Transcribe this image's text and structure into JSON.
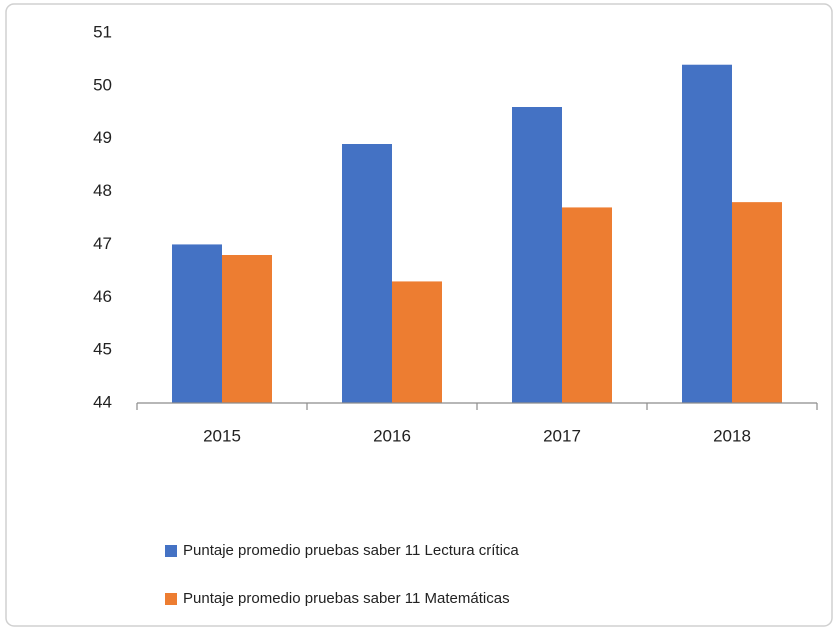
{
  "chart_data": {
    "type": "bar",
    "categories": [
      "2015",
      "2016",
      "2017",
      "2018"
    ],
    "series": [
      {
        "name": "Puntaje promedio pruebas saber 11 Lectura crítica",
        "color": "#4472c4",
        "values": [
          47.0,
          48.9,
          49.6,
          50.4
        ]
      },
      {
        "name": "Puntaje promedio pruebas saber 11 Matemáticas",
        "color": "#ed7d31",
        "values": [
          46.8,
          46.3,
          47.7,
          47.8
        ]
      }
    ],
    "ylim": [
      44,
      51
    ],
    "yticks": [
      44,
      45,
      46,
      47,
      48,
      49,
      50,
      51
    ],
    "grid": false,
    "legend": "bottom"
  }
}
